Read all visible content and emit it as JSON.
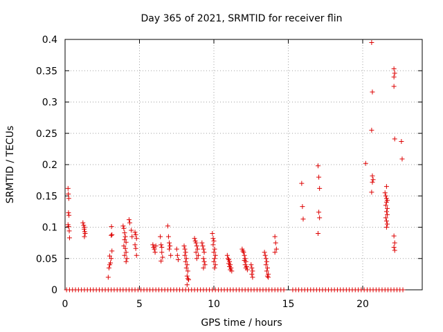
{
  "chart_data": {
    "type": "scatter",
    "title": "Day 365 of 2021, SRMTID for receiver flin",
    "xlabel": "GPS time / hours",
    "ylabel": "SRMTID / TECUs",
    "xlim": [
      0,
      24
    ],
    "ylim": [
      0,
      0.4
    ],
    "xticks": [
      0,
      5,
      10,
      15,
      20
    ],
    "xtick_labels": [
      "0",
      "5",
      "10",
      "15",
      "20"
    ],
    "yticks": [
      0,
      0.05,
      0.1,
      0.15,
      0.2,
      0.25,
      0.3,
      0.35,
      0.4
    ],
    "ytick_labels": [
      "0",
      "0.05",
      "0.1",
      "0.15",
      "0.2",
      "0.25",
      "0.3",
      "0.35",
      "0.4"
    ],
    "grid": true,
    "legend": "none",
    "marker": "plus",
    "color": "#dd0000",
    "series": [
      {
        "points": [
          [
            0.2,
            0.162
          ],
          [
            0.22,
            0.153
          ],
          [
            0.25,
            0.146
          ],
          [
            0.23,
            0.123
          ],
          [
            0.26,
            0.119
          ],
          [
            0.2,
            0.104
          ],
          [
            0.24,
            0.101
          ],
          [
            0.28,
            0.094
          ],
          [
            0.3,
            0.083
          ],
          [
            1.2,
            0.107
          ],
          [
            1.25,
            0.103
          ],
          [
            1.3,
            0.1
          ],
          [
            1.28,
            0.097
          ],
          [
            1.32,
            0.093
          ],
          [
            1.35,
            0.09
          ],
          [
            1.3,
            0.085
          ],
          [
            2.9,
            0.02
          ],
          [
            2.95,
            0.035
          ],
          [
            3.0,
            0.04
          ],
          [
            3.05,
            0.043
          ],
          [
            3.1,
            0.05
          ],
          [
            3.0,
            0.054
          ],
          [
            3.15,
            0.062
          ],
          [
            3.1,
            0.087
          ],
          [
            3.15,
            0.088
          ],
          [
            3.12,
            0.101
          ],
          [
            3.9,
            0.102
          ],
          [
            3.95,
            0.098
          ],
          [
            4.0,
            0.091
          ],
          [
            4.05,
            0.085
          ],
          [
            4.0,
            0.08
          ],
          [
            4.1,
            0.076
          ],
          [
            3.95,
            0.07
          ],
          [
            4.05,
            0.066
          ],
          [
            4.1,
            0.06
          ],
          [
            4.0,
            0.055
          ],
          [
            4.15,
            0.05
          ],
          [
            4.1,
            0.045
          ],
          [
            4.3,
            0.112
          ],
          [
            4.35,
            0.107
          ],
          [
            4.45,
            0.095
          ],
          [
            4.5,
            0.085
          ],
          [
            4.7,
            0.092
          ],
          [
            4.75,
            0.088
          ],
          [
            4.8,
            0.082
          ],
          [
            4.7,
            0.072
          ],
          [
            4.75,
            0.066
          ],
          [
            4.8,
            0.055
          ],
          [
            5.9,
            0.072
          ],
          [
            5.95,
            0.068
          ],
          [
            6.0,
            0.065
          ],
          [
            6.05,
            0.06
          ],
          [
            6.1,
            0.07
          ],
          [
            6.4,
            0.085
          ],
          [
            6.45,
            0.072
          ],
          [
            6.5,
            0.068
          ],
          [
            6.5,
            0.06
          ],
          [
            6.55,
            0.052
          ],
          [
            6.45,
            0.046
          ],
          [
            6.9,
            0.102
          ],
          [
            6.95,
            0.085
          ],
          [
            7.0,
            0.075
          ],
          [
            7.05,
            0.07
          ],
          [
            7.0,
            0.065
          ],
          [
            7.1,
            0.055
          ],
          [
            7.5,
            0.065
          ],
          [
            7.55,
            0.055
          ],
          [
            7.6,
            0.048
          ],
          [
            8.0,
            0.07
          ],
          [
            8.05,
            0.065
          ],
          [
            8.1,
            0.06
          ],
          [
            8.05,
            0.055
          ],
          [
            8.15,
            0.05
          ],
          [
            8.1,
            0.045
          ],
          [
            8.2,
            0.04
          ],
          [
            8.15,
            0.035
          ],
          [
            8.25,
            0.03
          ],
          [
            8.2,
            0.022
          ],
          [
            8.25,
            0.018
          ],
          [
            8.3,
            0.016
          ],
          [
            8.2,
            0.008
          ],
          [
            8.7,
            0.082
          ],
          [
            8.75,
            0.078
          ],
          [
            8.8,
            0.075
          ],
          [
            8.85,
            0.07
          ],
          [
            8.9,
            0.065
          ],
          [
            8.8,
            0.06
          ],
          [
            8.95,
            0.055
          ],
          [
            8.85,
            0.05
          ],
          [
            9.2,
            0.075
          ],
          [
            9.25,
            0.07
          ],
          [
            9.3,
            0.065
          ],
          [
            9.35,
            0.06
          ],
          [
            9.3,
            0.05
          ],
          [
            9.35,
            0.045
          ],
          [
            9.4,
            0.04
          ],
          [
            9.3,
            0.035
          ],
          [
            9.9,
            0.09
          ],
          [
            9.95,
            0.082
          ],
          [
            10.0,
            0.078
          ],
          [
            9.95,
            0.072
          ],
          [
            10.05,
            0.065
          ],
          [
            10.0,
            0.06
          ],
          [
            10.1,
            0.055
          ],
          [
            10.05,
            0.05
          ],
          [
            10.0,
            0.045
          ],
          [
            10.1,
            0.04
          ],
          [
            10.05,
            0.035
          ],
          [
            10.9,
            0.055
          ],
          [
            10.95,
            0.05
          ],
          [
            11.0,
            0.048
          ],
          [
            11.05,
            0.045
          ],
          [
            11.0,
            0.042
          ],
          [
            11.1,
            0.04
          ],
          [
            11.05,
            0.037
          ],
          [
            11.15,
            0.035
          ],
          [
            11.1,
            0.032
          ],
          [
            11.2,
            0.03
          ],
          [
            11.9,
            0.065
          ],
          [
            11.95,
            0.062
          ],
          [
            12.0,
            0.06
          ],
          [
            12.05,
            0.055
          ],
          [
            12.1,
            0.05
          ],
          [
            12.05,
            0.047
          ],
          [
            12.15,
            0.045
          ],
          [
            12.1,
            0.04
          ],
          [
            12.2,
            0.037
          ],
          [
            12.15,
            0.035
          ],
          [
            12.25,
            0.032
          ],
          [
            12.5,
            0.04
          ],
          [
            12.55,
            0.035
          ],
          [
            12.6,
            0.03
          ],
          [
            12.55,
            0.025
          ],
          [
            12.6,
            0.02
          ],
          [
            13.4,
            0.06
          ],
          [
            13.45,
            0.055
          ],
          [
            13.5,
            0.05
          ],
          [
            13.55,
            0.045
          ],
          [
            13.5,
            0.04
          ],
          [
            13.6,
            0.035
          ],
          [
            13.55,
            0.03
          ],
          [
            13.65,
            0.025
          ],
          [
            13.6,
            0.022
          ],
          [
            13.65,
            0.02
          ],
          [
            14.1,
            0.085
          ],
          [
            14.15,
            0.075
          ],
          [
            14.2,
            0.065
          ],
          [
            14.1,
            0.06
          ],
          [
            15.9,
            0.17
          ],
          [
            15.95,
            0.133
          ],
          [
            16.0,
            0.113
          ],
          [
            17.0,
            0.198
          ],
          [
            17.05,
            0.18
          ],
          [
            17.1,
            0.162
          ],
          [
            17.05,
            0.124
          ],
          [
            17.1,
            0.115
          ],
          [
            17.0,
            0.09
          ],
          [
            20.2,
            0.202
          ],
          [
            20.6,
            0.395
          ],
          [
            20.65,
            0.316
          ],
          [
            20.6,
            0.255
          ],
          [
            20.65,
            0.182
          ],
          [
            20.7,
            0.176
          ],
          [
            20.65,
            0.172
          ],
          [
            20.6,
            0.156
          ],
          [
            21.6,
            0.165
          ],
          [
            21.5,
            0.155
          ],
          [
            21.55,
            0.15
          ],
          [
            21.6,
            0.146
          ],
          [
            21.65,
            0.143
          ],
          [
            21.6,
            0.14
          ],
          [
            21.55,
            0.135
          ],
          [
            21.65,
            0.13
          ],
          [
            21.6,
            0.125
          ],
          [
            21.65,
            0.12
          ],
          [
            21.55,
            0.115
          ],
          [
            21.6,
            0.11
          ],
          [
            21.65,
            0.105
          ],
          [
            21.6,
            0.1
          ],
          [
            22.1,
            0.353
          ],
          [
            22.15,
            0.346
          ],
          [
            22.1,
            0.34
          ],
          [
            22.1,
            0.325
          ],
          [
            22.15,
            0.241
          ],
          [
            22.1,
            0.086
          ],
          [
            22.15,
            0.075
          ],
          [
            22.1,
            0.068
          ],
          [
            22.15,
            0.063
          ],
          [
            22.6,
            0.237
          ],
          [
            22.65,
            0.209
          ],
          [
            0.1,
            0
          ],
          [
            0.3,
            0
          ],
          [
            0.5,
            0
          ],
          [
            0.7,
            0
          ],
          [
            0.9,
            0
          ],
          [
            1.1,
            0
          ],
          [
            1.3,
            0
          ],
          [
            1.5,
            0
          ],
          [
            1.7,
            0
          ],
          [
            1.9,
            0
          ],
          [
            2.1,
            0
          ],
          [
            2.3,
            0
          ],
          [
            2.5,
            0
          ],
          [
            2.7,
            0
          ],
          [
            2.9,
            0
          ],
          [
            3.1,
            0
          ],
          [
            3.3,
            0
          ],
          [
            3.5,
            0
          ],
          [
            3.7,
            0
          ],
          [
            3.9,
            0
          ],
          [
            4.1,
            0
          ],
          [
            4.3,
            0
          ],
          [
            4.5,
            0
          ],
          [
            4.7,
            0
          ],
          [
            4.9,
            0
          ],
          [
            5.1,
            0
          ],
          [
            5.3,
            0
          ],
          [
            5.5,
            0
          ],
          [
            5.7,
            0
          ],
          [
            5.9,
            0
          ],
          [
            6.1,
            0
          ],
          [
            6.3,
            0
          ],
          [
            6.5,
            0
          ],
          [
            6.7,
            0
          ],
          [
            6.9,
            0
          ],
          [
            7.1,
            0
          ],
          [
            7.3,
            0
          ],
          [
            7.5,
            0
          ],
          [
            7.7,
            0
          ],
          [
            7.9,
            0
          ],
          [
            8.1,
            0
          ],
          [
            8.3,
            0
          ],
          [
            8.5,
            0
          ],
          [
            8.7,
            0
          ],
          [
            8.9,
            0
          ],
          [
            9.1,
            0
          ],
          [
            9.3,
            0
          ],
          [
            9.5,
            0
          ],
          [
            9.7,
            0
          ],
          [
            9.9,
            0
          ],
          [
            10.1,
            0
          ],
          [
            10.3,
            0
          ],
          [
            10.5,
            0
          ],
          [
            10.7,
            0
          ],
          [
            10.9,
            0
          ],
          [
            11.1,
            0
          ],
          [
            11.3,
            0
          ],
          [
            11.5,
            0
          ],
          [
            11.7,
            0
          ],
          [
            11.9,
            0
          ],
          [
            12.1,
            0
          ],
          [
            12.3,
            0
          ],
          [
            12.5,
            0
          ],
          [
            12.7,
            0
          ],
          [
            12.9,
            0
          ],
          [
            13.1,
            0
          ],
          [
            13.3,
            0
          ],
          [
            13.5,
            0
          ],
          [
            13.7,
            0
          ],
          [
            13.9,
            0
          ],
          [
            14.1,
            0
          ],
          [
            14.3,
            0
          ],
          [
            14.5,
            0
          ],
          [
            14.7,
            0
          ],
          [
            15.3,
            0
          ],
          [
            15.5,
            0
          ],
          [
            15.7,
            0
          ],
          [
            15.9,
            0
          ],
          [
            16.1,
            0
          ],
          [
            16.3,
            0
          ],
          [
            16.5,
            0
          ],
          [
            16.7,
            0
          ],
          [
            16.9,
            0
          ],
          [
            17.1,
            0
          ],
          [
            17.3,
            0
          ],
          [
            17.5,
            0
          ],
          [
            17.7,
            0
          ],
          [
            17.9,
            0
          ],
          [
            18.1,
            0
          ],
          [
            18.3,
            0
          ],
          [
            18.5,
            0
          ],
          [
            18.7,
            0
          ],
          [
            18.9,
            0
          ],
          [
            19.1,
            0
          ],
          [
            19.3,
            0
          ],
          [
            19.5,
            0
          ],
          [
            19.7,
            0
          ],
          [
            19.9,
            0
          ],
          [
            20.1,
            0
          ],
          [
            20.3,
            0
          ],
          [
            20.5,
            0
          ],
          [
            20.7,
            0
          ],
          [
            20.9,
            0
          ],
          [
            21.1,
            0
          ],
          [
            21.3,
            0
          ],
          [
            21.5,
            0
          ],
          [
            21.7,
            0
          ],
          [
            21.9,
            0
          ],
          [
            22.1,
            0
          ],
          [
            22.3,
            0
          ],
          [
            22.5,
            0
          ],
          [
            22.7,
            0
          ]
        ]
      }
    ]
  }
}
